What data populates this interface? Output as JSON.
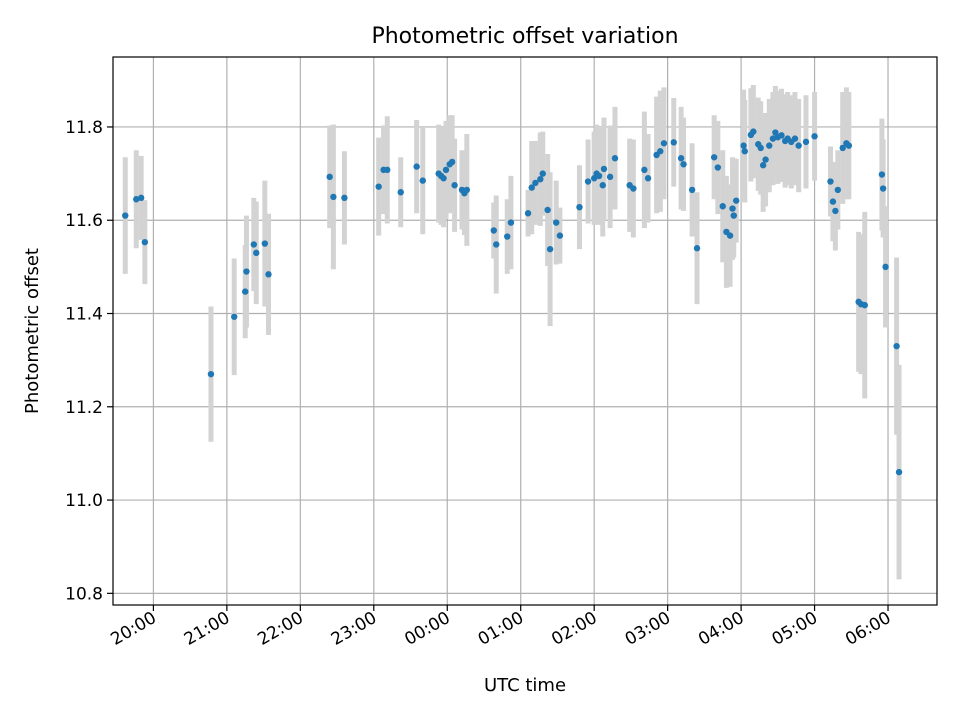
{
  "chart_data": {
    "type": "scatter",
    "title": "Photometric offset variation",
    "xlabel": "UTC time",
    "ylabel": "Photometric offset",
    "grid": true,
    "colors": {
      "points": "#1f77b4",
      "errorbars": "#d3d3d3",
      "grid": "#b0b0b0"
    },
    "x_range": [
      "19:27",
      "06:40"
    ],
    "ylim": [
      10.775,
      11.95
    ],
    "x_ticks": [
      "20:00",
      "21:00",
      "22:00",
      "23:00",
      "00:00",
      "01:00",
      "02:00",
      "03:00",
      "04:00",
      "05:00",
      "06:00"
    ],
    "y_ticks": [
      "10.8",
      "11.0",
      "11.2",
      "11.4",
      "11.6",
      "11.8"
    ],
    "series": [
      {
        "points": [
          {
            "t": "19:37",
            "y": 11.61,
            "err": 0.125
          },
          {
            "t": "19:46",
            "y": 11.645,
            "err": 0.105
          },
          {
            "t": "19:50",
            "y": 11.648,
            "err": 0.09
          },
          {
            "t": "19:53",
            "y": 11.553,
            "err": 0.09
          },
          {
            "t": "20:47",
            "y": 11.27,
            "err": 0.145
          },
          {
            "t": "21:06",
            "y": 11.393,
            "err": 0.125
          },
          {
            "t": "21:15",
            "y": 11.447,
            "err": 0.1
          },
          {
            "t": "21:16",
            "y": 11.49,
            "err": 0.12
          },
          {
            "t": "21:22",
            "y": 11.548,
            "err": 0.1
          },
          {
            "t": "21:24",
            "y": 11.53,
            "err": 0.11
          },
          {
            "t": "21:31",
            "y": 11.55,
            "err": 0.135
          },
          {
            "t": "21:34",
            "y": 11.484,
            "err": 0.13
          },
          {
            "t": "22:24",
            "y": 11.693,
            "err": 0.11
          },
          {
            "t": "22:27",
            "y": 11.65,
            "err": 0.155
          },
          {
            "t": "22:36",
            "y": 11.648,
            "err": 0.1
          },
          {
            "t": "23:04",
            "y": 11.672,
            "err": 0.105
          },
          {
            "t": "23:08",
            "y": 11.708,
            "err": 0.095
          },
          {
            "t": "23:11",
            "y": 11.708,
            "err": 0.115
          },
          {
            "t": "23:22",
            "y": 11.66,
            "err": 0.075
          },
          {
            "t": "23:35",
            "y": 11.715,
            "err": 0.1
          },
          {
            "t": "23:40",
            "y": 11.685,
            "err": 0.115
          },
          {
            "t": "23:53",
            "y": 11.7,
            "err": 0.105
          },
          {
            "t": "23:55",
            "y": 11.695,
            "err": 0.105
          },
          {
            "t": "23:57",
            "y": 11.69,
            "err": 0.105
          },
          {
            "t": "23:59",
            "y": 11.708,
            "err": 0.105
          },
          {
            "t": "00:02",
            "y": 11.72,
            "err": 0.105
          },
          {
            "t": "00:04",
            "y": 11.725,
            "err": 0.1
          },
          {
            "t": "00:06",
            "y": 11.675,
            "err": 0.1
          },
          {
            "t": "00:12",
            "y": 11.665,
            "err": 0.085
          },
          {
            "t": "00:14",
            "y": 11.658,
            "err": 0.09
          },
          {
            "t": "00:16",
            "y": 11.665,
            "err": 0.12
          },
          {
            "t": "00:38",
            "y": 11.578,
            "err": 0.06
          },
          {
            "t": "00:40",
            "y": 11.548,
            "err": 0.105
          },
          {
            "t": "00:49",
            "y": 11.565,
            "err": 0.08
          },
          {
            "t": "00:52",
            "y": 11.595,
            "err": 0.1
          },
          {
            "t": "01:06",
            "y": 11.615,
            "err": 0.05
          },
          {
            "t": "01:09",
            "y": 11.67,
            "err": 0.1
          },
          {
            "t": "01:12",
            "y": 11.68,
            "err": 0.09
          },
          {
            "t": "01:16",
            "y": 11.688,
            "err": 0.1
          },
          {
            "t": "01:18",
            "y": 11.7,
            "err": 0.09
          },
          {
            "t": "01:22",
            "y": 11.622,
            "err": 0.12
          },
          {
            "t": "01:24",
            "y": 11.538,
            "err": 0.165
          },
          {
            "t": "01:29",
            "y": 11.595,
            "err": 0.09
          },
          {
            "t": "01:32",
            "y": 11.567,
            "err": 0.06
          },
          {
            "t": "01:48",
            "y": 11.628,
            "err": 0.09
          },
          {
            "t": "01:55",
            "y": 11.683,
            "err": 0.09
          },
          {
            "t": "02:00",
            "y": 11.69,
            "err": 0.1
          },
          {
            "t": "02:02",
            "y": 11.7,
            "err": 0.105
          },
          {
            "t": "02:04",
            "y": 11.695,
            "err": 0.105
          },
          {
            "t": "02:07",
            "y": 11.675,
            "err": 0.11
          },
          {
            "t": "02:08",
            "y": 11.71,
            "err": 0.11
          },
          {
            "t": "02:13",
            "y": 11.693,
            "err": 0.11
          },
          {
            "t": "02:17",
            "y": 11.733,
            "err": 0.11
          },
          {
            "t": "02:29",
            "y": 11.675,
            "err": 0.1
          },
          {
            "t": "02:32",
            "y": 11.668,
            "err": 0.105
          },
          {
            "t": "02:41",
            "y": 11.708,
            "err": 0.125
          },
          {
            "t": "02:44",
            "y": 11.69,
            "err": 0.095
          },
          {
            "t": "02:51",
            "y": 11.74,
            "err": 0.125
          },
          {
            "t": "02:54",
            "y": 11.748,
            "err": 0.13
          },
          {
            "t": "02:57",
            "y": 11.765,
            "err": 0.12
          },
          {
            "t": "03:05",
            "y": 11.767,
            "err": 0.095
          },
          {
            "t": "03:11",
            "y": 11.733,
            "err": 0.11
          },
          {
            "t": "03:13",
            "y": 11.72,
            "err": 0.1
          },
          {
            "t": "03:20",
            "y": 11.665,
            "err": 0.1
          },
          {
            "t": "03:24",
            "y": 11.54,
            "err": 0.12
          },
          {
            "t": "03:38",
            "y": 11.735,
            "err": 0.09
          },
          {
            "t": "03:41",
            "y": 11.713,
            "err": 0.1
          },
          {
            "t": "03:45",
            "y": 11.63,
            "err": 0.12
          },
          {
            "t": "03:48",
            "y": 11.575,
            "err": 0.12
          },
          {
            "t": "03:51",
            "y": 11.567,
            "err": 0.11
          },
          {
            "t": "03:53",
            "y": 11.625,
            "err": 0.11
          },
          {
            "t": "03:54",
            "y": 11.61,
            "err": 0.09
          },
          {
            "t": "03:56",
            "y": 11.642,
            "err": 0.09
          },
          {
            "t": "04:02",
            "y": 11.76,
            "err": 0.12
          },
          {
            "t": "04:03",
            "y": 11.748,
            "err": 0.11
          },
          {
            "t": "04:08",
            "y": 11.783,
            "err": 0.1
          },
          {
            "t": "04:10",
            "y": 11.79,
            "err": 0.1
          },
          {
            "t": "04:14",
            "y": 11.763,
            "err": 0.1
          },
          {
            "t": "04:16",
            "y": 11.755,
            "err": 0.1
          },
          {
            "t": "04:18",
            "y": 11.718,
            "err": 0.1
          },
          {
            "t": "04:20",
            "y": 11.73,
            "err": 0.1
          },
          {
            "t": "04:23",
            "y": 11.76,
            "err": 0.1
          },
          {
            "t": "04:26",
            "y": 11.775,
            "err": 0.1
          },
          {
            "t": "04:28",
            "y": 11.788,
            "err": 0.1
          },
          {
            "t": "04:30",
            "y": 11.778,
            "err": 0.1
          },
          {
            "t": "04:33",
            "y": 11.782,
            "err": 0.1
          },
          {
            "t": "04:36",
            "y": 11.77,
            "err": 0.1
          },
          {
            "t": "04:38",
            "y": 11.775,
            "err": 0.1
          },
          {
            "t": "04:41",
            "y": 11.768,
            "err": 0.1
          },
          {
            "t": "04:44",
            "y": 11.775,
            "err": 0.1
          },
          {
            "t": "04:47",
            "y": 11.76,
            "err": 0.1
          },
          {
            "t": "04:53",
            "y": 11.768,
            "err": 0.1
          },
          {
            "t": "05:00",
            "y": 11.78,
            "err": 0.095
          },
          {
            "t": "05:13",
            "y": 11.683,
            "err": 0.075
          },
          {
            "t": "05:15",
            "y": 11.64,
            "err": 0.085
          },
          {
            "t": "05:17",
            "y": 11.62,
            "err": 0.085
          },
          {
            "t": "05:19",
            "y": 11.665,
            "err": 0.085
          },
          {
            "t": "05:23",
            "y": 11.755,
            "err": 0.12
          },
          {
            "t": "05:26",
            "y": 11.765,
            "err": 0.12
          },
          {
            "t": "05:28",
            "y": 11.76,
            "err": 0.115
          },
          {
            "t": "05:36",
            "y": 11.425,
            "err": 0.15
          },
          {
            "t": "05:38",
            "y": 11.42,
            "err": 0.15
          },
          {
            "t": "05:41",
            "y": 11.418,
            "err": 0.2
          },
          {
            "t": "05:55",
            "y": 11.698,
            "err": 0.12
          },
          {
            "t": "05:56",
            "y": 11.668,
            "err": 0.105
          },
          {
            "t": "05:58",
            "y": 11.5,
            "err": 0.13
          },
          {
            "t": "06:07",
            "y": 11.33,
            "err": 0.19
          },
          {
            "t": "06:09",
            "y": 11.06,
            "err": 0.23
          }
        ]
      }
    ]
  }
}
